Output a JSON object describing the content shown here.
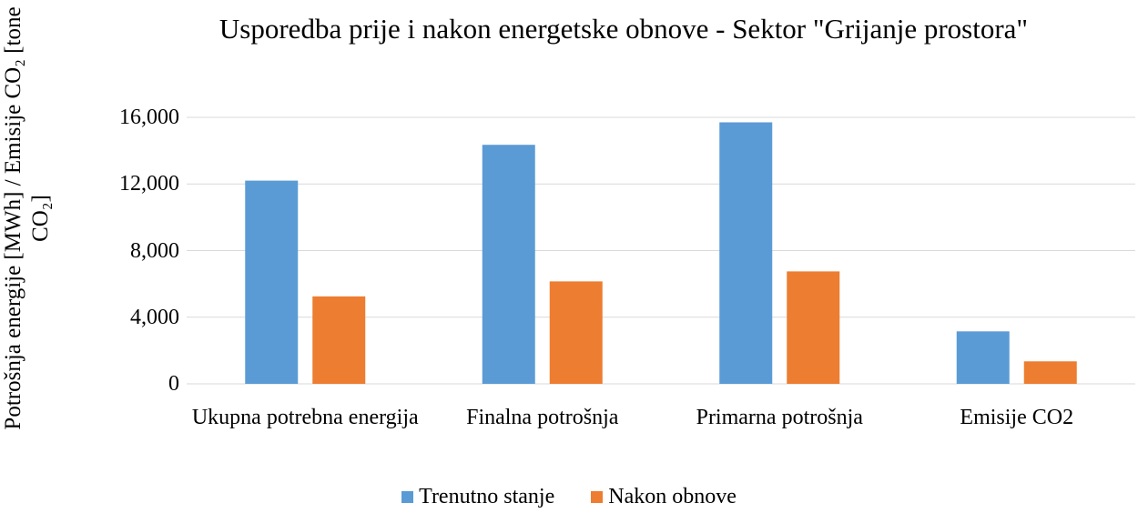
{
  "chart_data": {
    "type": "bar",
    "title": "Usporedba prije i nakon energetske obnove - Sektor \"Grijanje prostora\"",
    "y_label": "Potrošnja energije [MWh] / Emisije CO₂ [tone CO₂]",
    "categories": [
      "Ukupna potrebna energija",
      "Finalna potrošnja",
      "Primarna potrošnja",
      "Emisije CO2"
    ],
    "series": [
      {
        "name": "Trenutno stanje",
        "color": "#5b9bd5",
        "values": [
          12200,
          14350,
          15700,
          3150
        ]
      },
      {
        "name": "Nakon obnove",
        "color": "#ed7d31",
        "values": [
          5250,
          6150,
          6750,
          1350
        ]
      }
    ],
    "ylim": [
      0,
      16000
    ],
    "yticks": [
      0,
      {
        "value": 4000,
        "label": "4,000"
      },
      {
        "value": 8000,
        "label": "8,000"
      },
      {
        "value": 12000,
        "label": "12,000"
      },
      {
        "value": 16000,
        "label": "16,000"
      }
    ],
    "grid": true,
    "legend": "bottom"
  }
}
